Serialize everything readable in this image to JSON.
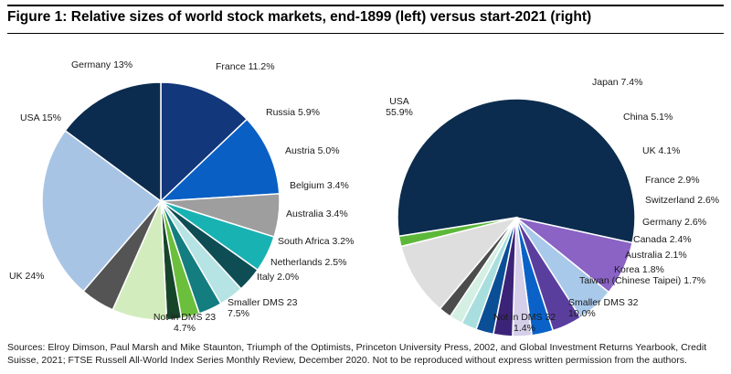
{
  "title": "Figure 1: Relative sizes of world stock markets, end-1899 (left) versus start-2021 (right)",
  "source": "Sources: Elroy Dimson, Paul Marsh and Mike Staunton, Triumph of the Optimists, Princeton University Press, 2002, and Global Investment Returns Yearbook, Credit Suisse, 2021; FTSE Russell All-World Index Series Monthly Review, December 2020. Not to be reproduced without express written permission from the authors.",
  "chart_data": [
    {
      "type": "pie",
      "title": "",
      "slices": [
        {
          "name": "Germany",
          "label": "Germany 13%",
          "value": 13.0,
          "color": "#12377a"
        },
        {
          "name": "France",
          "label": "France 11.2%",
          "value": 11.2,
          "color": "#0a5fc4"
        },
        {
          "name": "Russia",
          "label": "Russia 5.9%",
          "value": 5.9,
          "color": "#9e9e9e"
        },
        {
          "name": "Austria",
          "label": "Austria 5.0%",
          "value": 5.0,
          "color": "#19b2b2"
        },
        {
          "name": "Belgium",
          "label": "Belgium 3.4%",
          "value": 3.4,
          "color": "#0f4d55"
        },
        {
          "name": "Australia",
          "label": "Australia 3.4%",
          "value": 3.4,
          "color": "#b6e3e3"
        },
        {
          "name": "South Africa",
          "label": "South Africa 3.2%",
          "value": 3.2,
          "color": "#137d80"
        },
        {
          "name": "Netherlands",
          "label": "Netherlands 2.5%",
          "value": 2.5,
          "color": "#6cbf3c"
        },
        {
          "name": "Italy",
          "label": "Italy 2.0%",
          "value": 2.0,
          "color": "#17452a"
        },
        {
          "name": "Smaller DMS 23",
          "label": "Smaller DMS 23\n7.5%",
          "value": 7.5,
          "color": "#d3ecbd"
        },
        {
          "name": "Not in DMS 23",
          "label": "Not in DMS 23\n4.7%",
          "value": 4.7,
          "color": "#545454"
        },
        {
          "name": "UK",
          "label": "UK 24%",
          "value": 24.0,
          "color": "#a8c4e5"
        },
        {
          "name": "USA",
          "label": "USA 15%",
          "value": 15.0,
          "color": "#0b2c4e"
        }
      ]
    },
    {
      "type": "pie",
      "title": "",
      "slices": [
        {
          "name": "USA",
          "label": "USA\n55.9%",
          "value": 55.9,
          "color": "#0b2c4e"
        },
        {
          "name": "Japan",
          "label": "Japan 7.4%",
          "value": 7.4,
          "color": "#8a63c4"
        },
        {
          "name": "China",
          "label": "China 5.1%",
          "value": 5.1,
          "color": "#a9c9ea"
        },
        {
          "name": "UK",
          "label": "UK 4.1%",
          "value": 4.1,
          "color": "#5a3e9e"
        },
        {
          "name": "France",
          "label": "France 2.9%",
          "value": 2.9,
          "color": "#0a62c8"
        },
        {
          "name": "Switzerland",
          "label": "Switzerland 2.6%",
          "value": 2.6,
          "color": "#d5cfea"
        },
        {
          "name": "Germany",
          "label": "Germany 2.6%",
          "value": 2.6,
          "color": "#3b2478"
        },
        {
          "name": "Canada",
          "label": "Canada 2.4%",
          "value": 2.4,
          "color": "#0a4f96"
        },
        {
          "name": "Australia",
          "label": "Australia 2.1%",
          "value": 2.1,
          "color": "#a8dede"
        },
        {
          "name": "Korea",
          "label": "Korea 1.8%",
          "value": 1.8,
          "color": "#d4efe4"
        },
        {
          "name": "Taiwan (Chinese Taipei)",
          "label": "Taiwan (Chinese Taipei) 1.7%",
          "value": 1.7,
          "color": "#4c4c4c"
        },
        {
          "name": "Smaller DMS 32",
          "label": "Smaller DMS 32\n10.0%",
          "value": 10.0,
          "color": "#dedede"
        },
        {
          "name": "Not in DMS 32",
          "label": "Not in DMS 32\n1.4%",
          "value": 1.4,
          "color": "#5db83a"
        }
      ]
    }
  ]
}
